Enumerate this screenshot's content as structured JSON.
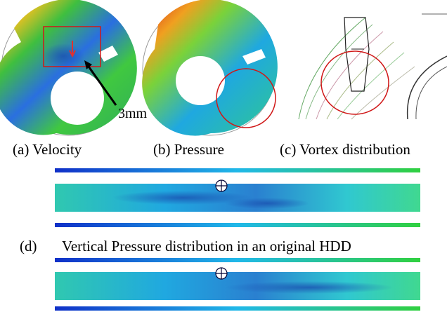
{
  "figure": {
    "panels": {
      "a": {
        "annotation": "3mm",
        "caption": "(a) Velocity"
      },
      "b": {
        "caption": "(b) Pressure"
      },
      "c": {
        "caption": "(c) Vortex distribution"
      },
      "d": {
        "label": "(d)",
        "caption": "Vertical Pressure distribution in an original HDD"
      }
    }
  }
}
